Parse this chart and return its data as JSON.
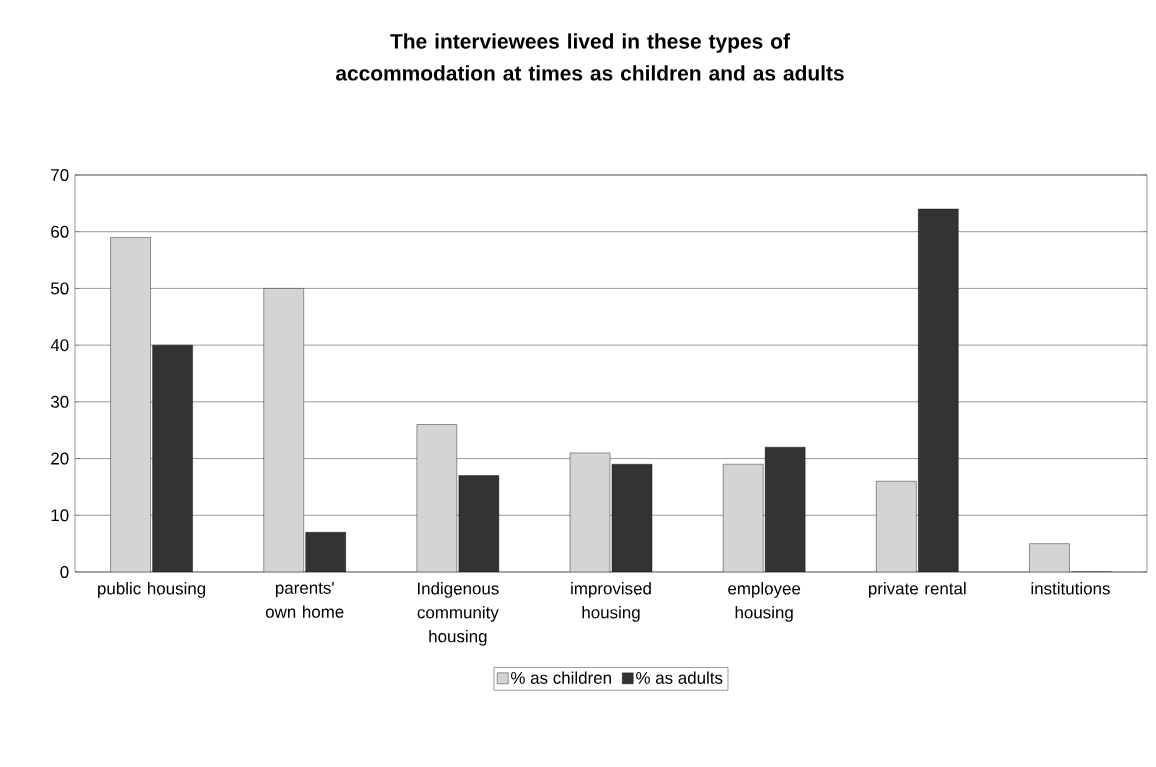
{
  "chart_data": {
    "type": "bar",
    "title": "The interviewees lived in these types of accommodation at times as children and as adults",
    "categories": [
      "public housing",
      "parents' own home",
      "Indigenous community housing",
      "improvised housing",
      "employee housing",
      "private rental",
      "institutions"
    ],
    "series": [
      {
        "name": "% as children",
        "color": "#d4d4d4",
        "values": [
          59,
          50,
          26,
          21,
          19,
          16,
          5
        ]
      },
      {
        "name": "% as adults",
        "color": "#333333",
        "values": [
          40,
          7,
          17,
          19,
          22,
          64,
          0
        ]
      }
    ],
    "ylim": [
      0,
      70
    ],
    "yticks": [
      0,
      10,
      20,
      30,
      40,
      50,
      60,
      70
    ],
    "grid": "y",
    "legend": "bottom"
  }
}
